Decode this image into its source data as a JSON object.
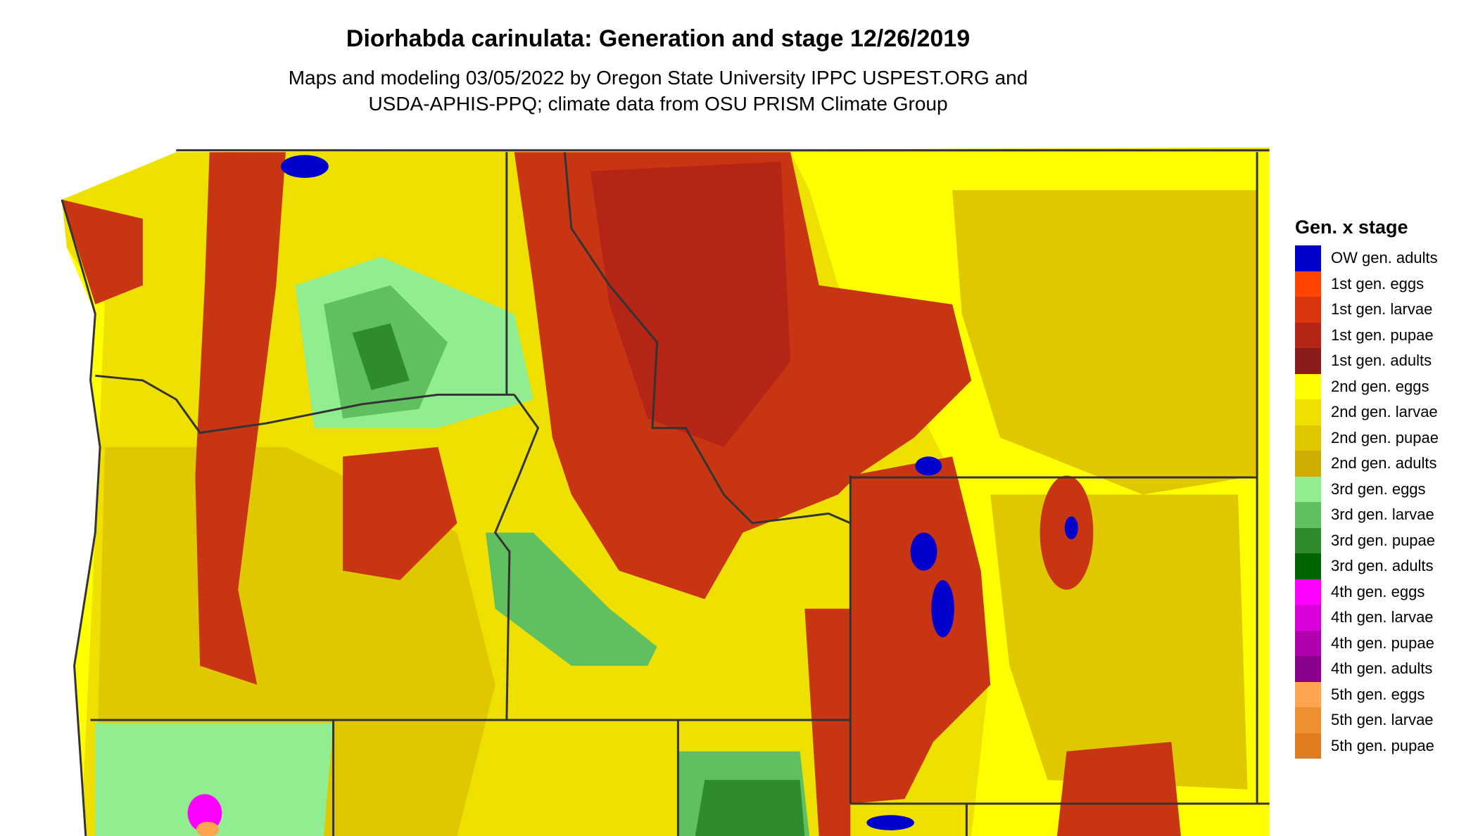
{
  "title": "Diorhabda carinulata: Generation and stage 12/26/2019",
  "subtitle_lines": [
    "Maps and modeling 03/05/2022 by Oregon State University IPPC USPEST.ORG and",
    "USDA-APHIS-PPQ; climate data from OSU PRISM Climate Group"
  ],
  "legend": {
    "title": "Gen. x stage",
    "items": [
      {
        "label": "OW gen. adults",
        "color": "#0000CD"
      },
      {
        "label": "1st gen. eggs",
        "color": "#FF4500"
      },
      {
        "label": "1st gen. larvae",
        "color": "#DA3510"
      },
      {
        "label": "1st gen. pupae",
        "color": "#B52515"
      },
      {
        "label": "1st gen. adults",
        "color": "#8B1A1A"
      },
      {
        "label": "2nd gen. eggs",
        "color": "#FFFF00"
      },
      {
        "label": "2nd gen. larvae",
        "color": "#EEE000"
      },
      {
        "label": "2nd gen. pupae",
        "color": "#E0C800"
      },
      {
        "label": "2nd gen. adults",
        "color": "#CDAD00"
      },
      {
        "label": "3rd gen. eggs",
        "color": "#90EE90"
      },
      {
        "label": "3rd gen. larvae",
        "color": "#60C060"
      },
      {
        "label": "3rd gen. pupae",
        "color": "#2E8B2E"
      },
      {
        "label": "3rd gen. adults",
        "color": "#006400"
      },
      {
        "label": "4th gen. eggs",
        "color": "#FF00FF"
      },
      {
        "label": "4th gen. larvae",
        "color": "#DA00DA"
      },
      {
        "label": "4th gen. pupae",
        "color": "#B000B0"
      },
      {
        "label": "4th gen. adults",
        "color": "#8B008B"
      },
      {
        "label": "5th gen. eggs",
        "color": "#FFA54F"
      },
      {
        "label": "5th gen. larvae",
        "color": "#EE9030"
      },
      {
        "label": "5th gen. pupae",
        "color": "#E07B20"
      }
    ]
  }
}
